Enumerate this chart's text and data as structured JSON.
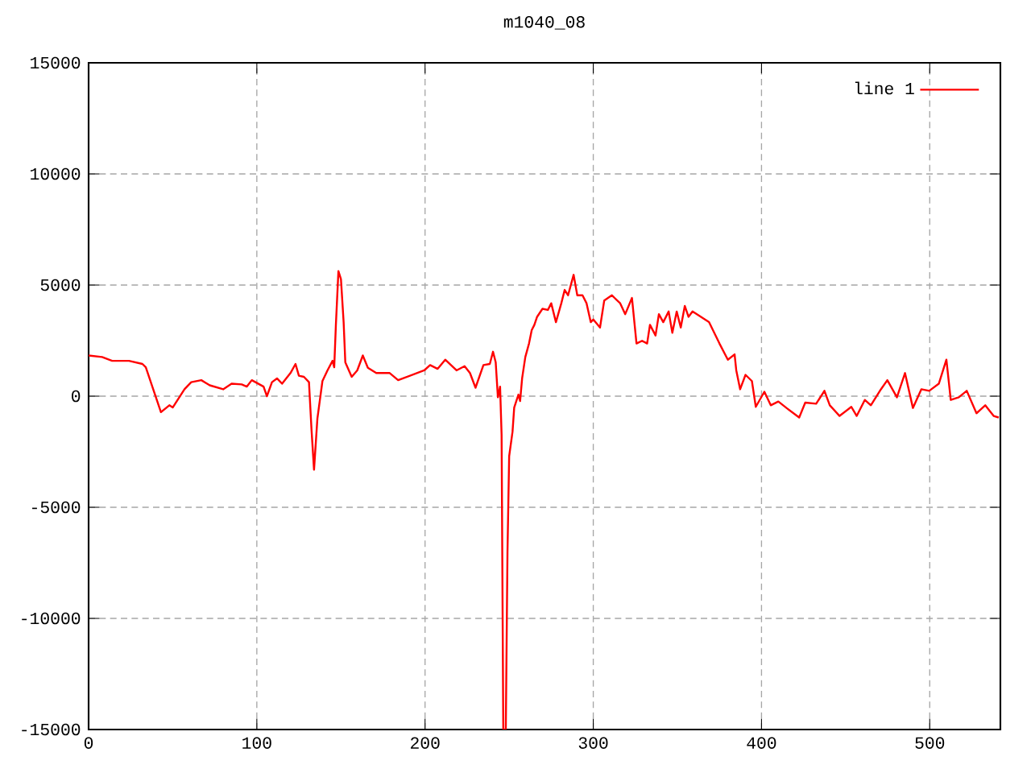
{
  "chart_data": {
    "type": "line",
    "title": "m1040_08",
    "x": [
      0,
      8,
      14,
      24,
      32,
      34,
      43,
      48,
      50,
      57,
      61,
      67,
      72,
      80,
      85,
      91,
      94,
      97,
      104,
      106,
      109,
      112,
      115,
      120,
      123,
      125,
      128,
      131,
      132.5,
      134,
      136,
      139,
      142,
      145,
      146,
      147,
      148.5,
      150,
      151.6,
      152.6,
      156.4,
      159.7,
      163,
      166,
      171,
      179,
      184,
      199.5,
      203,
      207.5,
      212,
      218.7,
      223.5,
      226.7,
      230,
      234.7,
      238.5,
      240.4,
      242,
      243.3,
      244.6,
      245.5,
      246.5,
      248,
      249,
      250,
      252,
      253,
      255.5,
      256.5,
      257.7,
      259.6,
      261.8,
      263.4,
      265,
      266.6,
      269.8,
      273,
      275,
      277.8,
      281,
      283,
      285,
      288.3,
      290.5,
      293.6,
      296,
      298.5,
      300,
      304,
      306.5,
      311,
      316,
      319,
      323,
      325.7,
      329,
      332,
      333.7,
      337,
      339,
      341.6,
      344.8,
      347,
      349.6,
      352,
      354.4,
      356.6,
      359,
      368.8,
      375,
      380,
      384,
      385,
      387.3,
      390.5,
      394.3,
      396.6,
      401.7,
      405.5,
      410,
      415,
      422.4,
      426,
      432.5,
      437.4,
      440.6,
      446.4,
      453.4,
      456.6,
      461.4,
      465,
      471,
      474.8,
      480.5,
      485.3,
      490,
      495,
      499.7,
      505.4,
      509.9,
      512.5,
      517.3,
      522,
      527.8,
      533,
      538,
      541
    ],
    "series": [
      {
        "name": "line 1",
        "color": "#ff0000",
        "values": [
          1830,
          1760,
          1590,
          1590,
          1450,
          1300,
          -720,
          -410,
          -510,
          310,
          630,
          720,
          490,
          310,
          560,
          530,
          430,
          720,
          430,
          0,
          630,
          800,
          560,
          1040,
          1450,
          920,
          870,
          630,
          -1500,
          -3310,
          -1010,
          680,
          1160,
          1590,
          1300,
          3210,
          5630,
          5270,
          3330,
          1520,
          870,
          1160,
          1830,
          1280,
          1040,
          1040,
          720,
          1160,
          1400,
          1230,
          1640,
          1160,
          1350,
          1040,
          380,
          1400,
          1450,
          2000,
          1520,
          -50,
          430,
          -1740,
          -15000,
          -15000,
          -7000,
          -2700,
          -1600,
          -510,
          70,
          -220,
          800,
          1760,
          2370,
          2970,
          3210,
          3570,
          3930,
          3880,
          4180,
          3330,
          4180,
          4780,
          4540,
          5460,
          4540,
          4540,
          4180,
          3330,
          3450,
          3090,
          4300,
          4540,
          4180,
          3690,
          4420,
          2370,
          2490,
          2370,
          3210,
          2730,
          3690,
          3330,
          3810,
          2850,
          3810,
          3090,
          4060,
          3570,
          3810,
          3330,
          2370,
          1640,
          1880,
          1160,
          310,
          960,
          680,
          -480,
          200,
          -410,
          -240,
          -540,
          -960,
          -290,
          -340,
          240,
          -410,
          -890,
          -480,
          -890,
          -170,
          -410,
          310,
          720,
          -50,
          1040,
          -530,
          310,
          240,
          560,
          1640,
          -170,
          -50,
          240,
          -770,
          -410,
          -890,
          -960
        ]
      }
    ],
    "xlim": [
      0,
      542
    ],
    "ylim": [
      -15000,
      15000
    ],
    "xticks": [
      0,
      100,
      200,
      300,
      400,
      500
    ],
    "yticks": [
      -15000,
      -10000,
      -5000,
      0,
      5000,
      10000,
      15000
    ],
    "grid": true,
    "legend": "top right",
    "line_style": "solid",
    "marker": "none"
  }
}
